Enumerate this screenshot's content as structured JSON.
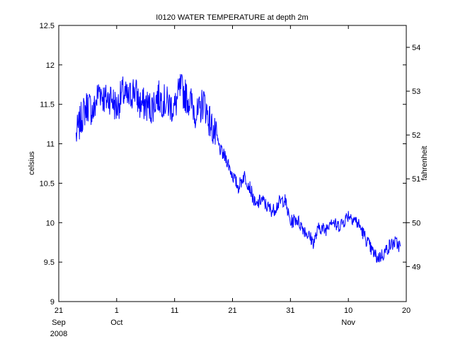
{
  "chart_data": {
    "type": "line",
    "title": "I0120 WATER TEMPERATURE at depth 2m",
    "ylabel": "celsius",
    "y2label": "fahrenheit",
    "xlabel": "",
    "year_label": "2008",
    "x_tick_labels": [
      "21",
      "1",
      "11",
      "21",
      "31",
      "10",
      "20"
    ],
    "x_month_labels": [
      "Sep",
      "Oct",
      "Nov"
    ],
    "x_ticks": [
      "2008-09-21",
      "2008-10-01",
      "2008-10-11",
      "2008-10-21",
      "2008-10-31",
      "2008-11-10",
      "2008-11-20"
    ],
    "xlim": [
      "2008-09-21",
      "2008-11-20"
    ],
    "ylim": [
      9,
      12.5
    ],
    "y_ticks": [
      "9",
      "9.5",
      "10",
      "10.5",
      "11",
      "11.5",
      "12",
      "12.5"
    ],
    "y2_ticks": [
      "49",
      "50",
      "51",
      "52",
      "53",
      "54"
    ],
    "grid": false,
    "line_color": "#0000ff",
    "series": [
      {
        "x": [
          "2008-09-24",
          "2008-09-25",
          "2008-09-26",
          "2008-09-27",
          "2008-09-28",
          "2008-09-29",
          "2008-09-30",
          "2008-10-01",
          "2008-10-02",
          "2008-10-03",
          "2008-10-04",
          "2008-10-05",
          "2008-10-06",
          "2008-10-07",
          "2008-10-08",
          "2008-10-09",
          "2008-10-10",
          "2008-10-11",
          "2008-10-12",
          "2008-10-13",
          "2008-10-14",
          "2008-10-15",
          "2008-10-16",
          "2008-10-17",
          "2008-10-18",
          "2008-10-19",
          "2008-10-20",
          "2008-10-21",
          "2008-10-22",
          "2008-10-23",
          "2008-10-24",
          "2008-10-25",
          "2008-10-26",
          "2008-10-27",
          "2008-10-28",
          "2008-10-29",
          "2008-10-30",
          "2008-10-31",
          "2008-11-01",
          "2008-11-02",
          "2008-11-03",
          "2008-11-04",
          "2008-11-05",
          "2008-11-06",
          "2008-11-07",
          "2008-11-08",
          "2008-11-09",
          "2008-11-10",
          "2008-11-11",
          "2008-11-12",
          "2008-11-13",
          "2008-11-14",
          "2008-11-15",
          "2008-11-16",
          "2008-11-17",
          "2008-11-18",
          "2008-11-19"
        ],
        "values": [
          11.1,
          11.35,
          11.5,
          11.4,
          11.7,
          11.55,
          11.6,
          11.45,
          11.65,
          11.55,
          11.7,
          11.5,
          11.5,
          11.45,
          11.6,
          11.55,
          11.5,
          11.45,
          11.7,
          11.6,
          11.5,
          11.35,
          11.55,
          11.3,
          11.1,
          10.9,
          10.8,
          10.6,
          10.45,
          10.6,
          10.45,
          10.2,
          10.3,
          10.2,
          10.15,
          10.25,
          10.3,
          10.0,
          10.05,
          9.95,
          9.85,
          9.75,
          9.95,
          9.9,
          10.05,
          9.95,
          10.0,
          10.1,
          10.05,
          9.95,
          9.8,
          9.65,
          9.55,
          9.6,
          9.7,
          9.75,
          9.7
        ]
      }
    ]
  }
}
